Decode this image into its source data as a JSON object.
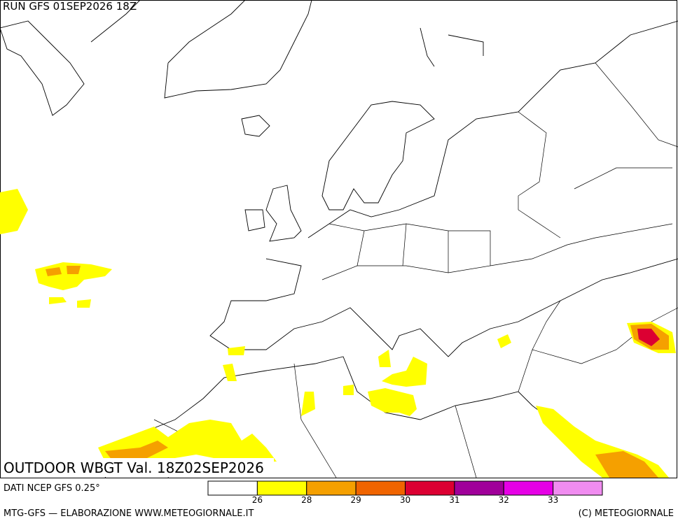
{
  "header": {
    "run": "RUN GFS 01SEP2026 18Z"
  },
  "map": {
    "title": "OUTDOOR WBGT Val. 18Z02SEP2026"
  },
  "source": "DATI NCEP GFS 0.25°",
  "legend": {
    "colors": [
      "#ffffff",
      "#ffff00",
      "#f5a000",
      "#f06400",
      "#dc0032",
      "#a0009a",
      "#e600e6",
      "#f08cf0"
    ],
    "ticks": [
      26,
      28,
      29,
      30,
      31,
      32,
      33
    ]
  },
  "footer": {
    "left": "MTG-GFS — ELABORAZIONE WWW.METEOGIORNALE.IT",
    "right": "(C) METEOGIORNALE"
  }
}
